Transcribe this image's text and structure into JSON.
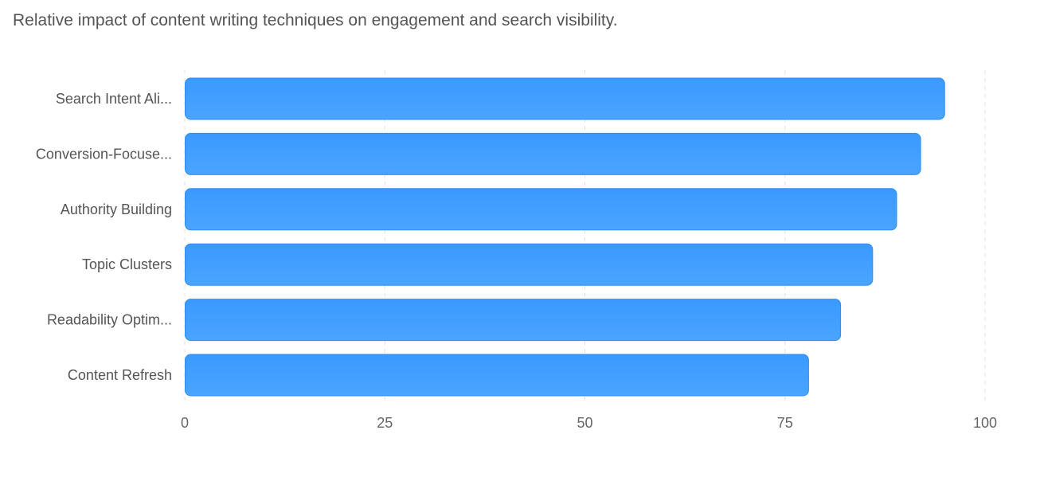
{
  "chart_data": {
    "type": "bar",
    "orientation": "horizontal",
    "title": "Relative impact of content writing techniques on engagement and search visibility.",
    "categories": [
      "Search Intent Ali...",
      "Conversion-Focuse...",
      "Authority Building",
      "Topic Clusters",
      "Readability Optim...",
      "Content Refresh"
    ],
    "values": [
      95,
      92,
      89,
      86,
      82,
      78
    ],
    "xlim": [
      0,
      100
    ],
    "xticks": [
      "0",
      "25",
      "50",
      "75",
      "100"
    ],
    "xlabel": "",
    "ylabel": "",
    "grid": "vertical dashed",
    "colors": {
      "bar_top": "#3d9bff",
      "bar_bottom": "#4aa3ff",
      "bar_stroke": "#2f8ef5",
      "grid": "#e0e0e0",
      "text": "#555555"
    }
  }
}
